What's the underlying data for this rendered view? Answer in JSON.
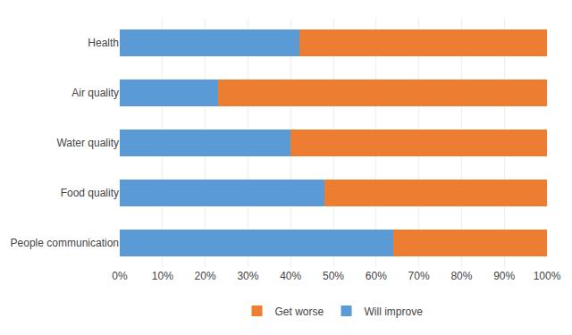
{
  "chart_data": {
    "type": "bar",
    "orientation": "horizontal",
    "stacked": true,
    "categories": [
      "People communication",
      "Food quality",
      "Water quality",
      "Air quality",
      "Health"
    ],
    "series": [
      {
        "name": "Will improve",
        "color": "#5B9BD5",
        "values": [
          64,
          48,
          40,
          23,
          42
        ]
      },
      {
        "name": "Get worse",
        "color": "#ED7D31",
        "values": [
          36,
          52,
          60,
          77,
          58
        ]
      }
    ],
    "xlim": [
      0,
      100
    ],
    "xticks": [
      {
        "value": 0,
        "label": "0%"
      },
      {
        "value": 10,
        "label": "10%"
      },
      {
        "value": 20,
        "label": "20%"
      },
      {
        "value": 30,
        "label": "30%"
      },
      {
        "value": 40,
        "label": "40%"
      },
      {
        "value": 50,
        "label": "50%"
      },
      {
        "value": 60,
        "label": "60%"
      },
      {
        "value": 70,
        "label": "70%"
      },
      {
        "value": 80,
        "label": "80%"
      },
      {
        "value": 90,
        "label": "90%"
      },
      {
        "value": 100,
        "label": "100%"
      }
    ],
    "grid": true,
    "legend": "bottom"
  }
}
